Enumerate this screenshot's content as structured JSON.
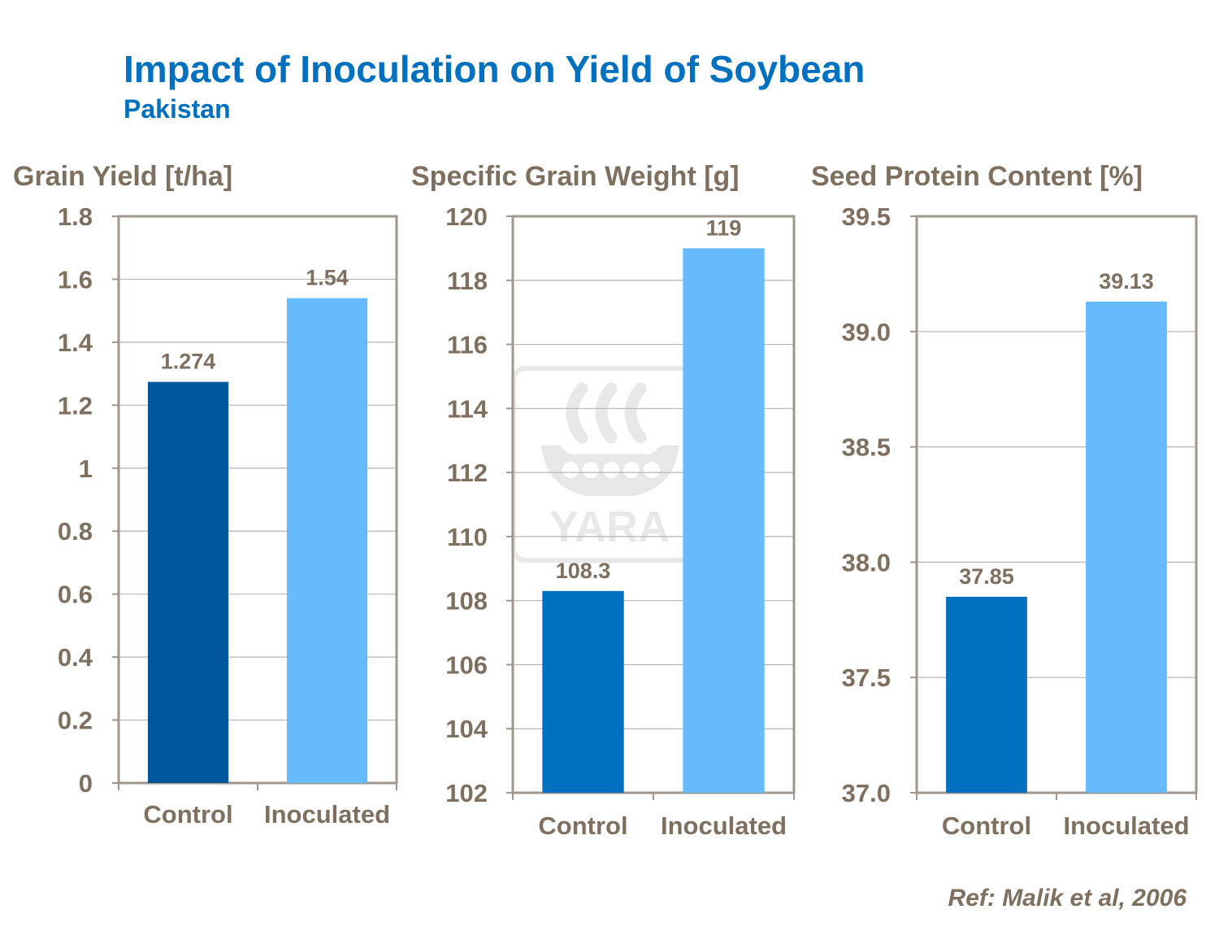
{
  "header": {
    "title": "Impact of Inoculation on Yield of Soybean",
    "subtitle": "Pakistan"
  },
  "footer": {
    "ref": "Ref: Malik et al, 2006"
  },
  "watermark": {
    "text": "YARA",
    "icon": "yara-viking-ship-logo"
  },
  "colors": {
    "control": [
      "#00589C",
      "#0070C0",
      "#0070C0"
    ],
    "inoculated": "#66BBFF",
    "axis": "#A0968C",
    "gridline": "#B4B4B4",
    "text": "#7F6F5F",
    "title": "#0070C0"
  },
  "chart_data": [
    {
      "type": "bar",
      "title": "Grain Yield [t/ha]",
      "categories": [
        "Control",
        "Inoculated"
      ],
      "values": [
        1.274,
        1.54
      ],
      "value_labels": [
        "1.274",
        "1.54"
      ],
      "ylim": [
        0,
        1.8
      ],
      "yticks": [
        0,
        0.2,
        0.4,
        0.6,
        0.8,
        1,
        1.2,
        1.4,
        1.6,
        1.8
      ],
      "ytick_labels": [
        "0",
        "0.2",
        "0.4",
        "0.6",
        "0.8",
        "1",
        "1.2",
        "1.4",
        "1.6",
        "1.8"
      ],
      "grid": true,
      "legend": "none"
    },
    {
      "type": "bar",
      "title": "Specific Grain Weight [g]",
      "categories": [
        "Control",
        "Inoculated"
      ],
      "values": [
        108.3,
        119
      ],
      "value_labels": [
        "108.3",
        "119"
      ],
      "ylim": [
        102,
        120
      ],
      "yticks": [
        102,
        104,
        106,
        108,
        110,
        112,
        114,
        116,
        118,
        120
      ],
      "ytick_labels": [
        "102",
        "104",
        "106",
        "108",
        "110",
        "112",
        "114",
        "116",
        "118",
        "120"
      ],
      "grid": true,
      "legend": "none"
    },
    {
      "type": "bar",
      "title": "Seed Protein Content [%]",
      "categories": [
        "Control",
        "Inoculated"
      ],
      "values": [
        37.85,
        39.13
      ],
      "value_labels": [
        "37.85",
        "39.13"
      ],
      "ylim": [
        37.0,
        39.5
      ],
      "yticks": [
        37.0,
        37.5,
        38.0,
        38.5,
        39.0,
        39.5
      ],
      "ytick_labels": [
        "37.0",
        "37.5",
        "38.0",
        "38.5",
        "39.0",
        "39.5"
      ],
      "grid": true,
      "legend": "none"
    }
  ]
}
